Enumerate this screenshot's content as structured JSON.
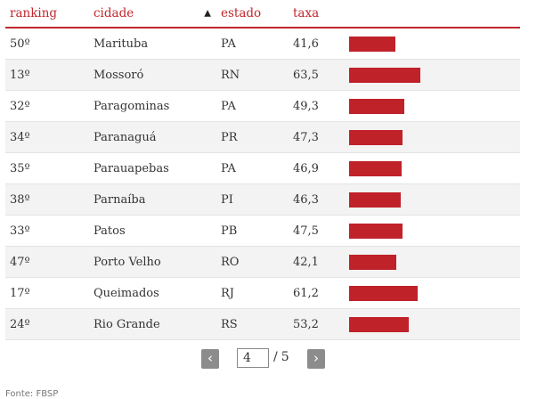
{
  "headers": {
    "ranking": "ranking",
    "cidade": "cidade",
    "estado": "estado",
    "taxa": "taxa",
    "sort_indicator": "▲"
  },
  "rows": [
    {
      "ranking": "50º",
      "cidade": "Marituba",
      "estado": "PA",
      "taxa": "41,6",
      "value": 41.6
    },
    {
      "ranking": "13º",
      "cidade": "Mossoró",
      "estado": "RN",
      "taxa": "63,5",
      "value": 63.5
    },
    {
      "ranking": "32º",
      "cidade": "Paragominas",
      "estado": "PA",
      "taxa": "49,3",
      "value": 49.3
    },
    {
      "ranking": "34º",
      "cidade": "Paranaguá",
      "estado": "PR",
      "taxa": "47,3",
      "value": 47.3
    },
    {
      "ranking": "35º",
      "cidade": "Parauapebas",
      "estado": "PA",
      "taxa": "46,9",
      "value": 46.9
    },
    {
      "ranking": "38º",
      "cidade": "Parnaíba",
      "estado": "PI",
      "taxa": "46,3",
      "value": 46.3
    },
    {
      "ranking": "33º",
      "cidade": "Patos",
      "estado": "PB",
      "taxa": "47,5",
      "value": 47.5
    },
    {
      "ranking": "47º",
      "cidade": "Porto Velho",
      "estado": "RO",
      "taxa": "42,1",
      "value": 42.1
    },
    {
      "ranking": "17º",
      "cidade": "Queimados",
      "estado": "RJ",
      "taxa": "61,2",
      "value": 61.2
    },
    {
      "ranking": "24º",
      "cidade": "Rio Grande",
      "estado": "RS",
      "taxa": "53,2",
      "value": 53.2
    }
  ],
  "pagination": {
    "prev": "‹",
    "next": "›",
    "current_page": "4",
    "separator": "/",
    "total_pages": "5"
  },
  "source": "Fonte: FBSP",
  "colors": {
    "accent": "#c0282d",
    "bar": "#c0222a",
    "button": "#8c8c8c"
  }
}
